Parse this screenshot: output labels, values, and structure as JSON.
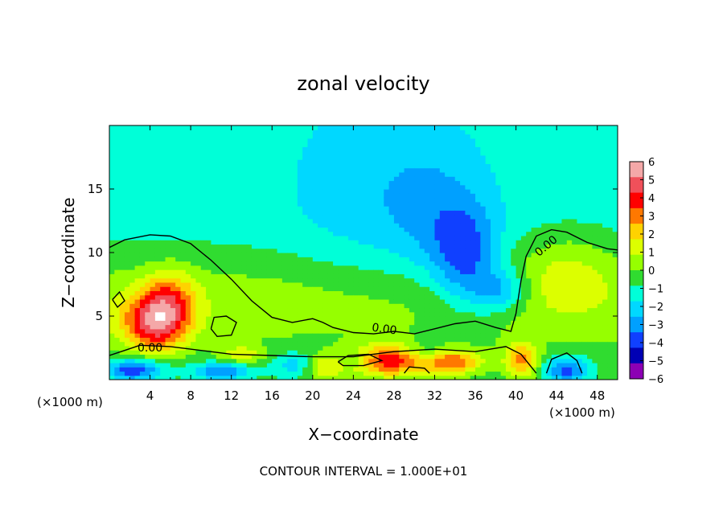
{
  "chart_data": {
    "type": "heatmap",
    "title": "zonal velocity",
    "xlabel": "X−coordinate",
    "ylabel": "Z−coordinate",
    "x_unit": "(×1000 m)",
    "x_unit_right": "(×1000 m)",
    "xlim": [
      0,
      50
    ],
    "ylim": [
      0,
      20
    ],
    "x_ticks": [
      4,
      8,
      12,
      16,
      20,
      24,
      28,
      32,
      36,
      40,
      44,
      48
    ],
    "y_ticks": [
      5,
      10,
      15
    ],
    "contour_interval_text": "CONTOUR INTERVAL = 1.000E+01",
    "contour_label": "0.00",
    "colorbar": {
      "ticks": [
        "6",
        "5",
        "4",
        "3",
        "2",
        "1",
        "0",
        "−1",
        "−2",
        "−3",
        "−4",
        "−5",
        "−6"
      ],
      "values": [
        6,
        5,
        4,
        3,
        2,
        1,
        0,
        -1,
        -2,
        -3,
        -4,
        -5,
        -6
      ],
      "colors": [
        "#f4a8a8",
        "#f0505a",
        "#ff0000",
        "#ff7800",
        "#ffd200",
        "#dcff00",
        "#96ff00",
        "#30dc30",
        "#00ffd8",
        "#00d8ff",
        "#00a0ff",
        "#1040ff",
        "#0000b4",
        "#8c00b4"
      ]
    },
    "blobs": [
      {
        "x": 4.5,
        "z": 4.5,
        "sx": 2.2,
        "sz": 1.6,
        "v": 5.2
      },
      {
        "x": 6,
        "z": 6.5,
        "sx": 1.8,
        "sz": 1.6,
        "v": 2.5
      },
      {
        "x": 45,
        "z": 8.8,
        "sx": 3.5,
        "sz": 2.2,
        "v": 1.4
      },
      {
        "x": 35,
        "z": 9.5,
        "sx": 2.3,
        "sz": 2.8,
        "v": -3.0
      },
      {
        "x": 38.5,
        "z": 7,
        "sx": 2.0,
        "sz": 1.3,
        "v": -2.6
      },
      {
        "x": 32,
        "z": 13,
        "sx": 3.5,
        "sz": 4.0,
        "v": -1.1
      },
      {
        "x": 26,
        "z": 14,
        "sx": 6.0,
        "sz": 6.0,
        "v": -1.0
      },
      {
        "x": 27.5,
        "z": 1.5,
        "sx": 2.8,
        "sz": 0.9,
        "v": 4.8
      },
      {
        "x": 34,
        "z": 1.4,
        "sx": 2.0,
        "sz": 0.7,
        "v": 3.8
      },
      {
        "x": 40.5,
        "z": 1.5,
        "sx": 1.2,
        "sz": 1.0,
        "v": 3.5
      },
      {
        "x": 21,
        "z": 1.0,
        "sx": 1.5,
        "sz": 0.7,
        "v": 2.5
      },
      {
        "x": 13,
        "z": 2.0,
        "sx": 1.5,
        "sz": 0.5,
        "v": 2.0
      },
      {
        "x": 2.5,
        "z": 0.8,
        "sx": 2.0,
        "sz": 0.6,
        "v": -4.0
      },
      {
        "x": 11,
        "z": 0.7,
        "sx": 2.0,
        "sz": 0.5,
        "v": -3.0
      },
      {
        "x": 45,
        "z": 0.8,
        "sx": 1.5,
        "sz": 0.7,
        "v": -3.5
      },
      {
        "x": 18.5,
        "z": 1.2,
        "sx": 1.5,
        "sz": 0.7,
        "v": -2.0
      },
      {
        "x": 24,
        "z": 1.6,
        "sx": 1.2,
        "sz": 0.5,
        "v": -1.6
      },
      {
        "x": 31,
        "z": 2.3,
        "sx": 1.2,
        "sz": 0.6,
        "v": -1.3
      }
    ],
    "contour_zero": [
      [
        [
          0,
          10.4
        ],
        [
          1.5,
          11.0
        ],
        [
          4,
          11.4
        ],
        [
          6,
          11.3
        ],
        [
          8,
          10.7
        ],
        [
          10,
          9.4
        ],
        [
          12,
          7.9
        ],
        [
          14,
          6.2
        ],
        [
          16,
          4.9
        ],
        [
          18,
          4.5
        ],
        [
          20,
          4.8
        ],
        [
          21,
          4.5
        ],
        [
          22,
          4.1
        ],
        [
          24,
          3.7
        ],
        [
          26,
          3.6
        ],
        [
          28,
          3.8
        ],
        [
          30,
          3.6
        ],
        [
          32,
          4.0
        ],
        [
          34,
          4.4
        ],
        [
          36,
          4.6
        ],
        [
          38,
          4.1
        ],
        [
          39.5,
          3.8
        ],
        [
          40,
          5.2
        ],
        [
          40.5,
          7.8
        ],
        [
          41,
          9.7
        ],
        [
          42,
          11.3
        ],
        [
          43.5,
          11.8
        ],
        [
          45,
          11.6
        ],
        [
          47,
          10.8
        ],
        [
          49,
          10.3
        ],
        [
          50,
          10.2
        ]
      ],
      [
        [
          0,
          1.9
        ],
        [
          1.5,
          2.3
        ],
        [
          3,
          2.7
        ],
        [
          6,
          2.6
        ],
        [
          9,
          2.3
        ],
        [
          12,
          2.0
        ],
        [
          16,
          1.9
        ],
        [
          20,
          1.8
        ],
        [
          24,
          1.8
        ],
        [
          28,
          2.2
        ],
        [
          32,
          2.4
        ],
        [
          36,
          2.2
        ],
        [
          39,
          2.6
        ],
        [
          40.5,
          2.0
        ],
        [
          42,
          0.5
        ]
      ],
      [
        [
          10,
          4.0
        ],
        [
          10.3,
          4.9
        ],
        [
          11.5,
          5.0
        ],
        [
          12.5,
          4.5
        ],
        [
          12.0,
          3.5
        ],
        [
          10.6,
          3.4
        ],
        [
          10,
          4.0
        ]
      ],
      [
        [
          0.3,
          6.3
        ],
        [
          1.0,
          6.9
        ],
        [
          1.5,
          6.2
        ],
        [
          0.8,
          5.7
        ],
        [
          0.3,
          6.3
        ]
      ],
      [
        [
          22.5,
          1.4
        ],
        [
          23.5,
          1.9
        ],
        [
          25.5,
          2.0
        ],
        [
          26.8,
          1.5
        ],
        [
          25,
          1.1
        ],
        [
          23,
          1.1
        ],
        [
          22.5,
          1.4
        ]
      ],
      [
        [
          43,
          0.5
        ],
        [
          43.5,
          1.6
        ],
        [
          45,
          2.1
        ],
        [
          46,
          1.5
        ],
        [
          46.5,
          0.5
        ]
      ],
      [
        [
          29,
          0.5
        ],
        [
          29.5,
          1.0
        ],
        [
          31,
          0.9
        ],
        [
          31.5,
          0.5
        ]
      ]
    ]
  }
}
